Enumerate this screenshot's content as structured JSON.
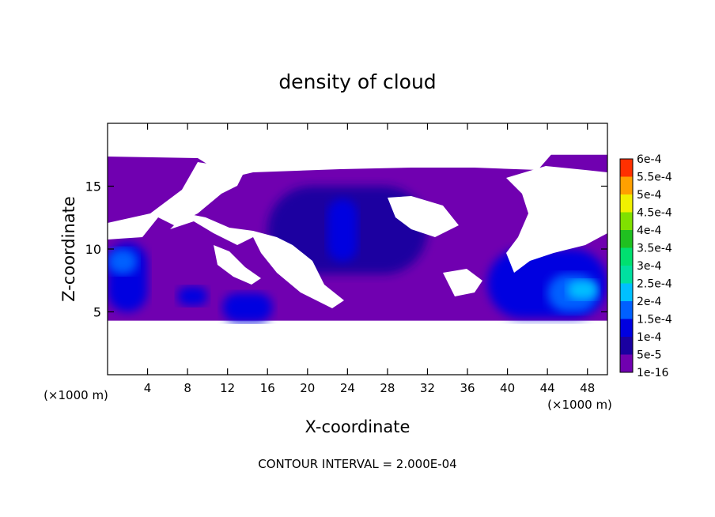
{
  "chart_data": {
    "type": "heatmap",
    "title": "density of cloud",
    "xlabel": "X-coordinate",
    "ylabel": "Z-coordinate",
    "x_unit_left": "(×1000 m)",
    "x_unit_right": "(×1000 m)",
    "xlim": [
      0,
      50
    ],
    "ylim": [
      0,
      20
    ],
    "xticks": [
      4,
      8,
      12,
      16,
      20,
      24,
      28,
      32,
      36,
      40,
      44,
      48
    ],
    "yticks": [
      5,
      10,
      15
    ],
    "footer": "CONTOUR INTERVAL = 2.000E-04",
    "colorbar": {
      "labels": [
        "1e-16",
        "5e-5",
        "1e-4",
        "1.5e-4",
        "2e-4",
        "2.5e-4",
        "3e-4",
        "3.5e-4",
        "4e-4",
        "4.5e-4",
        "5e-4",
        "5.5e-4",
        "6e-4"
      ],
      "colors": [
        "#7000b0",
        "#1a00a0",
        "#0000e0",
        "#0060ff",
        "#00c0ff",
        "#00e0a0",
        "#00e070",
        "#20c020",
        "#80e000",
        "#f0f000",
        "#ffa000",
        "#ff3000",
        "#ff2020",
        "#ff9090"
      ]
    },
    "regions": [
      {
        "level": "1e-16",
        "x": 0,
        "z": 4.3,
        "w": 50,
        "h": 13.2
      },
      {
        "level": "5e-5",
        "x": 16,
        "z": 8,
        "w": 16,
        "h": 7
      },
      {
        "level": "1e-4",
        "x": 0,
        "z": 5,
        "w": 4,
        "h": 5.5
      },
      {
        "level": "1e-4",
        "x": 7,
        "z": 5.5,
        "w": 3,
        "h": 1.5
      },
      {
        "level": "1e-4",
        "x": 11.5,
        "z": 4.2,
        "w": 5,
        "h": 2.3
      },
      {
        "level": "1e-4",
        "x": 22,
        "z": 9,
        "w": 3,
        "h": 5
      },
      {
        "level": "1e-4",
        "x": 38,
        "z": 4.5,
        "w": 12,
        "h": 5.5
      },
      {
        "level": "1.5e-4",
        "x": 0,
        "z": 8,
        "w": 3,
        "h": 2
      },
      {
        "level": "1.5e-4",
        "x": 44,
        "z": 5,
        "w": 5,
        "h": 3
      },
      {
        "level": "2e-4",
        "x": 46,
        "z": 6,
        "w": 3,
        "h": 1.5
      }
    ]
  }
}
